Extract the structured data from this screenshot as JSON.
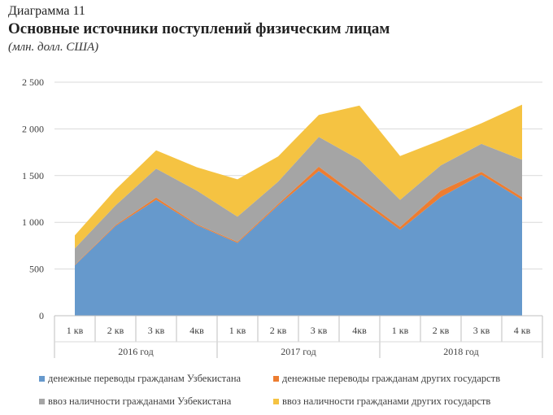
{
  "header": {
    "label": "Диаграмма 11",
    "title": "Основные источники поступлений физическим лицам",
    "subtitle": "(млн. долл. США)"
  },
  "chart_data": {
    "type": "area",
    "stacked": true,
    "quarters": [
      "1 кв",
      "2 кв",
      "3 кв",
      "4кв",
      "1 кв",
      "2 кв",
      "3 кв",
      "4кв",
      "1 кв",
      "2 кв",
      "3 кв",
      "4 кв"
    ],
    "years": [
      "2016 год",
      "2017 год",
      "2018 год"
    ],
    "y_ticks": [
      "0",
      "500",
      "1 000",
      "1 500",
      "2 000",
      "2 500"
    ],
    "ylim": [
      0,
      2500
    ],
    "grid": true,
    "legend_position": "bottom",
    "series": [
      {
        "name": "денежные переводы гражданам Узбекистана",
        "color": "#6699cc",
        "values": [
          540,
          960,
          1240,
          970,
          780,
          1180,
          1550,
          1240,
          920,
          1270,
          1510,
          1240
        ]
      },
      {
        "name": "денежные переводы гражданам других государств",
        "color": "#ed7d31",
        "values": [
          5,
          10,
          25,
          10,
          10,
          15,
          45,
          30,
          30,
          70,
          30,
          30
        ]
      },
      {
        "name": "ввоз наличности гражданами Узбекистана",
        "color": "#a5a5a5",
        "values": [
          175,
          210,
          310,
          360,
          270,
          240,
          320,
          400,
          290,
          270,
          300,
          400
        ]
      },
      {
        "name": "ввоз наличности гражданами других государств",
        "color": "#f5c342",
        "values": [
          140,
          170,
          195,
          250,
          400,
          270,
          235,
          580,
          470,
          270,
          220,
          590
        ]
      }
    ]
  }
}
